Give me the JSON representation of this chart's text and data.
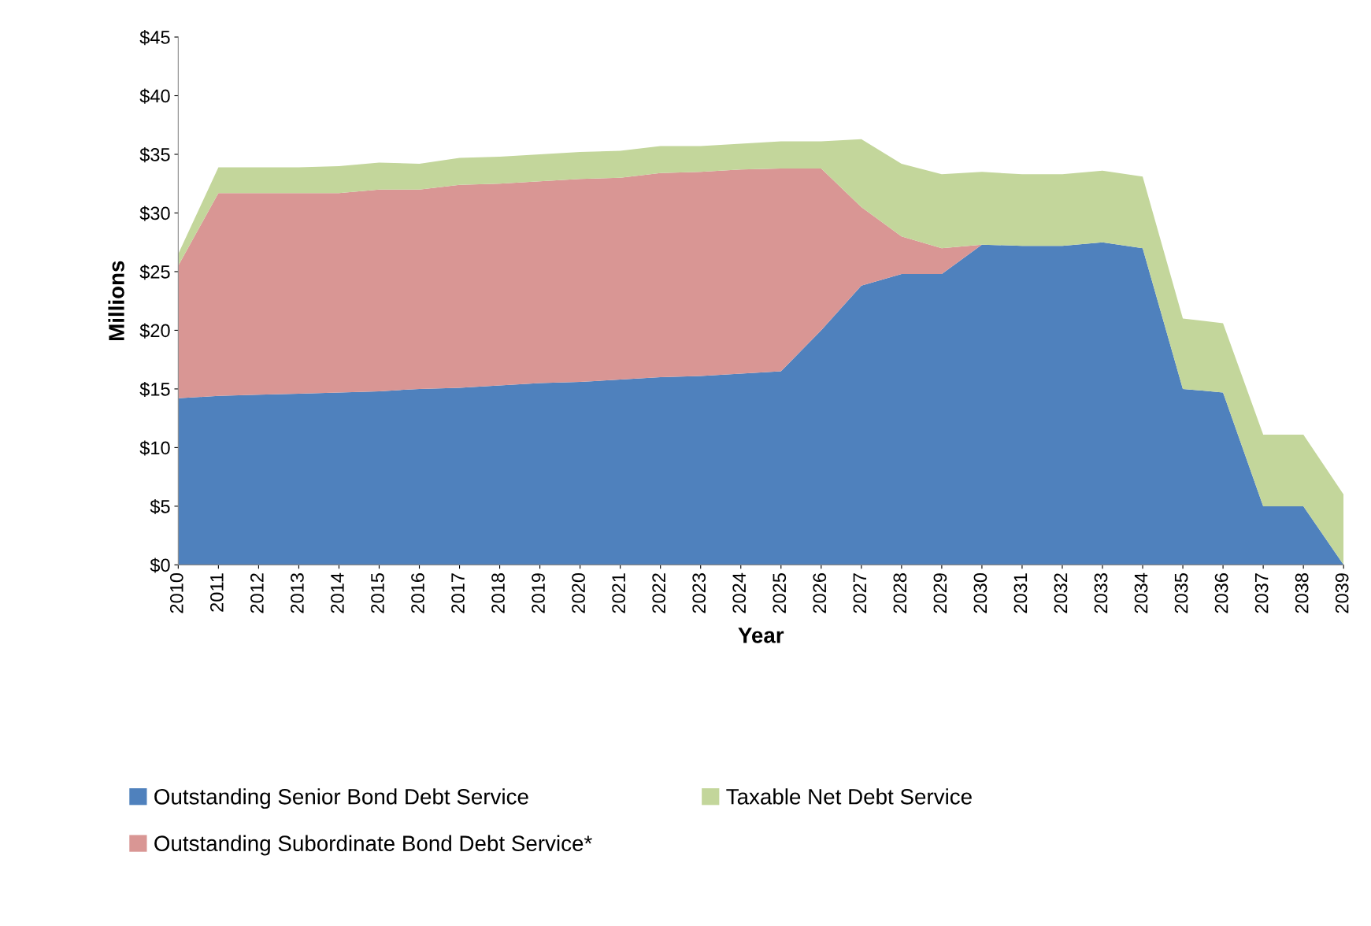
{
  "chart_data": {
    "type": "area",
    "stacked": true,
    "xlabel": "Year",
    "ylabel": "Millions",
    "categories": [
      "2010",
      "2011",
      "2012",
      "2013",
      "2014",
      "2015",
      "2016",
      "2017",
      "2018",
      "2019",
      "2020",
      "2021",
      "2022",
      "2023",
      "2024",
      "2025",
      "2026",
      "2027",
      "2028",
      "2029",
      "2030",
      "2031",
      "2032",
      "2033",
      "2034",
      "2035",
      "2036",
      "2037",
      "2038",
      "2039"
    ],
    "series": [
      {
        "name": "Outstanding Senior Bond Debt Service",
        "color": "#4f81bd",
        "values": [
          14.2,
          14.4,
          14.5,
          14.6,
          14.7,
          14.8,
          15.0,
          15.1,
          15.3,
          15.5,
          15.6,
          15.8,
          16.0,
          16.1,
          16.3,
          16.5,
          20.0,
          23.8,
          24.8,
          24.8,
          27.3,
          27.2,
          27.2,
          27.5,
          27.0,
          15.0,
          14.7,
          5.0,
          5.0,
          0
        ]
      },
      {
        "name": "Outstanding Subordinate Bond Debt Service*",
        "color": "#d99694",
        "values": [
          11.3,
          17.3,
          17.2,
          17.1,
          17.0,
          17.2,
          17.0,
          17.3,
          17.2,
          17.2,
          17.3,
          17.2,
          17.4,
          17.4,
          17.4,
          17.3,
          13.8,
          6.7,
          3.2,
          2.2,
          0,
          0,
          0,
          0,
          0,
          0,
          0,
          0,
          0,
          0
        ]
      },
      {
        "name": "Taxable Net Debt Service",
        "color": "#c3d69b",
        "values": [
          1.0,
          2.2,
          2.2,
          2.2,
          2.3,
          2.3,
          2.2,
          2.3,
          2.3,
          2.3,
          2.3,
          2.3,
          2.3,
          2.2,
          2.2,
          2.3,
          2.3,
          5.8,
          6.2,
          6.3,
          6.2,
          6.1,
          6.1,
          6.1,
          6.1,
          6.0,
          5.9,
          6.1,
          6.1,
          6.0
        ]
      }
    ],
    "ylim": [
      0,
      45
    ],
    "yticks": [
      {
        "value": 0,
        "label": "$0"
      },
      {
        "value": 5,
        "label": "$5"
      },
      {
        "value": 10,
        "label": "$10"
      },
      {
        "value": 15,
        "label": "$15"
      },
      {
        "value": 20,
        "label": "$20"
      },
      {
        "value": 25,
        "label": "$25"
      },
      {
        "value": 30,
        "label": "$30"
      },
      {
        "value": 35,
        "label": "$35"
      },
      {
        "value": 40,
        "label": "$40"
      },
      {
        "value": 45,
        "label": "$45"
      }
    ],
    "grid": false,
    "legend": "bottom"
  }
}
